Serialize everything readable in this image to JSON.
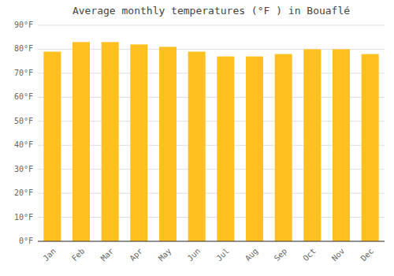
{
  "chart_data": {
    "type": "bar",
    "title": "Average monthly temperatures (°F ) in Bouaflé",
    "categories": [
      "Jan",
      "Feb",
      "Mar",
      "Apr",
      "May",
      "Jun",
      "Jul",
      "Aug",
      "Sep",
      "Oct",
      "Nov",
      "Dec"
    ],
    "values": [
      79,
      83,
      83,
      82,
      81,
      79,
      77,
      77,
      78,
      80,
      80,
      78
    ],
    "color": "#FFC020",
    "ylim": [
      0,
      90
    ],
    "yticks": [
      {
        "value": 0,
        "label": "0°F"
      },
      {
        "value": 10,
        "label": "10°F"
      },
      {
        "value": 20,
        "label": "20°F"
      },
      {
        "value": 30,
        "label": "30°F"
      },
      {
        "value": 40,
        "label": "40°F"
      },
      {
        "value": 50,
        "label": "50°F"
      },
      {
        "value": 60,
        "label": "60°F"
      },
      {
        "value": 70,
        "label": "70°F"
      },
      {
        "value": 80,
        "label": "80°F"
      },
      {
        "value": 90,
        "label": "90°F"
      }
    ],
    "grid": true
  }
}
